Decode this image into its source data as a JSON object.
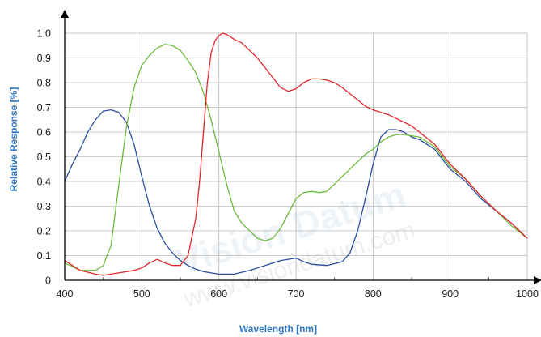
{
  "colors": {
    "axis_title": "#2f78c4",
    "grid": "#b9b9b9",
    "axis": "#000000",
    "blue_series": "#2b4f9e",
    "green_series": "#6dbb3b",
    "red_series": "#e3262c"
  },
  "watermark": {
    "brand": "Vision Datum",
    "url": "www.visiondatum.com"
  },
  "chart_data": {
    "type": "line",
    "title": "",
    "xlabel": "Wavelength [nm]",
    "ylabel": "Relative Response [%]",
    "xlim": [
      400,
      1000
    ],
    "ylim": [
      0,
      1.0
    ],
    "x_ticks": [
      400,
      500,
      600,
      700,
      800,
      900,
      1000
    ],
    "x_tick_labels": [
      "400",
      "500",
      "600",
      "700",
      "800",
      "900",
      "1000"
    ],
    "y_ticks": [
      0,
      0.1,
      0.2,
      0.3,
      0.4,
      0.5,
      0.6,
      0.7,
      0.8,
      0.9,
      1.0
    ],
    "y_tick_labels": [
      "0",
      "0.1",
      "0.2",
      "0.3",
      "0.4",
      "0.5",
      "0.6",
      "0.7",
      "0.8",
      "0.9",
      "1.0"
    ],
    "grid": true,
    "legend": "none",
    "series": [
      {
        "color": "#2b4f9e",
        "x": [
          400,
          410,
          420,
          430,
          440,
          450,
          460,
          470,
          480,
          490,
          500,
          510,
          520,
          530,
          540,
          550,
          560,
          570,
          580,
          600,
          620,
          640,
          660,
          680,
          700,
          710,
          720,
          740,
          760,
          770,
          780,
          790,
          800,
          810,
          820,
          830,
          840,
          850,
          860,
          880,
          900,
          920,
          940,
          960,
          980,
          1000
        ],
        "y": [
          0.4,
          0.47,
          0.53,
          0.6,
          0.65,
          0.685,
          0.69,
          0.68,
          0.64,
          0.55,
          0.42,
          0.3,
          0.21,
          0.15,
          0.11,
          0.08,
          0.06,
          0.045,
          0.035,
          0.025,
          0.025,
          0.04,
          0.06,
          0.08,
          0.09,
          0.075,
          0.065,
          0.06,
          0.075,
          0.11,
          0.2,
          0.33,
          0.47,
          0.58,
          0.61,
          0.61,
          0.6,
          0.58,
          0.57,
          0.53,
          0.45,
          0.4,
          0.33,
          0.28,
          0.23,
          0.17
        ]
      },
      {
        "color": "#6dbb3b",
        "x": [
          400,
          420,
          440,
          450,
          460,
          470,
          480,
          490,
          500,
          510,
          520,
          530,
          540,
          550,
          560,
          570,
          580,
          590,
          600,
          610,
          620,
          630,
          640,
          650,
          660,
          670,
          680,
          690,
          700,
          710,
          720,
          730,
          740,
          750,
          760,
          770,
          780,
          790,
          800,
          810,
          820,
          830,
          840,
          850,
          860,
          880,
          900,
          920,
          940,
          960,
          980,
          1000
        ],
        "y": [
          0.07,
          0.04,
          0.04,
          0.06,
          0.14,
          0.38,
          0.62,
          0.78,
          0.87,
          0.91,
          0.94,
          0.955,
          0.95,
          0.93,
          0.89,
          0.84,
          0.76,
          0.65,
          0.52,
          0.39,
          0.28,
          0.23,
          0.2,
          0.17,
          0.16,
          0.17,
          0.21,
          0.27,
          0.33,
          0.355,
          0.36,
          0.355,
          0.36,
          0.39,
          0.42,
          0.45,
          0.48,
          0.51,
          0.53,
          0.56,
          0.58,
          0.59,
          0.59,
          0.585,
          0.58,
          0.54,
          0.46,
          0.41,
          0.34,
          0.28,
          0.22,
          0.17
        ]
      },
      {
        "color": "#e3262c",
        "x": [
          400,
          420,
          440,
          450,
          460,
          470,
          480,
          490,
          500,
          510,
          520,
          530,
          540,
          550,
          560,
          570,
          575,
          580,
          585,
          590,
          595,
          600,
          605,
          610,
          620,
          630,
          640,
          650,
          660,
          670,
          680,
          690,
          700,
          710,
          720,
          730,
          740,
          750,
          760,
          770,
          780,
          790,
          800,
          810,
          820,
          830,
          840,
          850,
          860,
          880,
          900,
          920,
          940,
          960,
          980,
          1000
        ],
        "y": [
          0.08,
          0.04,
          0.025,
          0.02,
          0.025,
          0.03,
          0.035,
          0.04,
          0.05,
          0.07,
          0.085,
          0.07,
          0.06,
          0.06,
          0.1,
          0.25,
          0.4,
          0.6,
          0.8,
          0.92,
          0.97,
          0.99,
          1.0,
          0.995,
          0.975,
          0.96,
          0.93,
          0.9,
          0.86,
          0.82,
          0.78,
          0.765,
          0.775,
          0.8,
          0.815,
          0.815,
          0.81,
          0.8,
          0.78,
          0.755,
          0.73,
          0.705,
          0.69,
          0.68,
          0.67,
          0.655,
          0.64,
          0.625,
          0.6,
          0.55,
          0.47,
          0.41,
          0.34,
          0.28,
          0.23,
          0.17
        ]
      }
    ]
  }
}
